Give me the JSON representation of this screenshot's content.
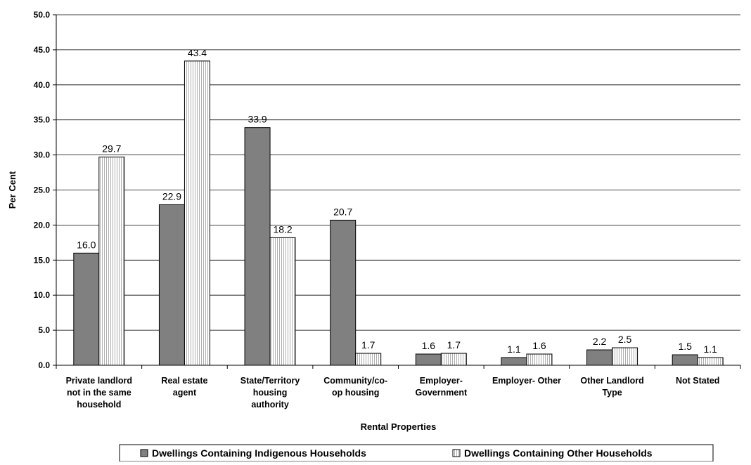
{
  "chart_data": {
    "type": "bar",
    "title": "",
    "xlabel": "Rental Properties",
    "ylabel": "Per Cent",
    "ylim": [
      0,
      50
    ],
    "yticks": [
      "0.0",
      "5.0",
      "10.0",
      "15.0",
      "20.0",
      "25.0",
      "30.0",
      "35.0",
      "40.0",
      "45.0",
      "50.0"
    ],
    "grid": true,
    "legend_position": "bottom",
    "categories": [
      [
        "Private landlord",
        "not in the same",
        "household"
      ],
      [
        "Real estate",
        "agent"
      ],
      [
        "State/Territory",
        "housing",
        "authority"
      ],
      [
        "Community/co-",
        "op housing"
      ],
      [
        "Employer-",
        "Government"
      ],
      [
        "Employer- Other"
      ],
      [
        "Other Landlord",
        "Type"
      ],
      [
        "Not Stated"
      ]
    ],
    "series": [
      {
        "name": "Dwellings Containing Indigenous Households",
        "color": "#808080",
        "pattern": "solid",
        "values": [
          16.0,
          22.9,
          33.9,
          20.7,
          1.6,
          1.1,
          2.2,
          1.5
        ],
        "labels": [
          "16.0",
          "22.9",
          "33.9",
          "20.7",
          "1.6",
          "1.1",
          "2.2",
          "1.5"
        ]
      },
      {
        "name": "Dwellings Containing Other Households",
        "color": "#ffffff",
        "pattern": "vertical-lines",
        "values": [
          29.7,
          43.4,
          18.2,
          1.7,
          1.7,
          1.6,
          2.5,
          1.1
        ],
        "labels": [
          "29.7",
          "43.4",
          "18.2",
          "1.7",
          "1.7",
          "1.6",
          "2.5",
          "1.1"
        ]
      }
    ]
  }
}
